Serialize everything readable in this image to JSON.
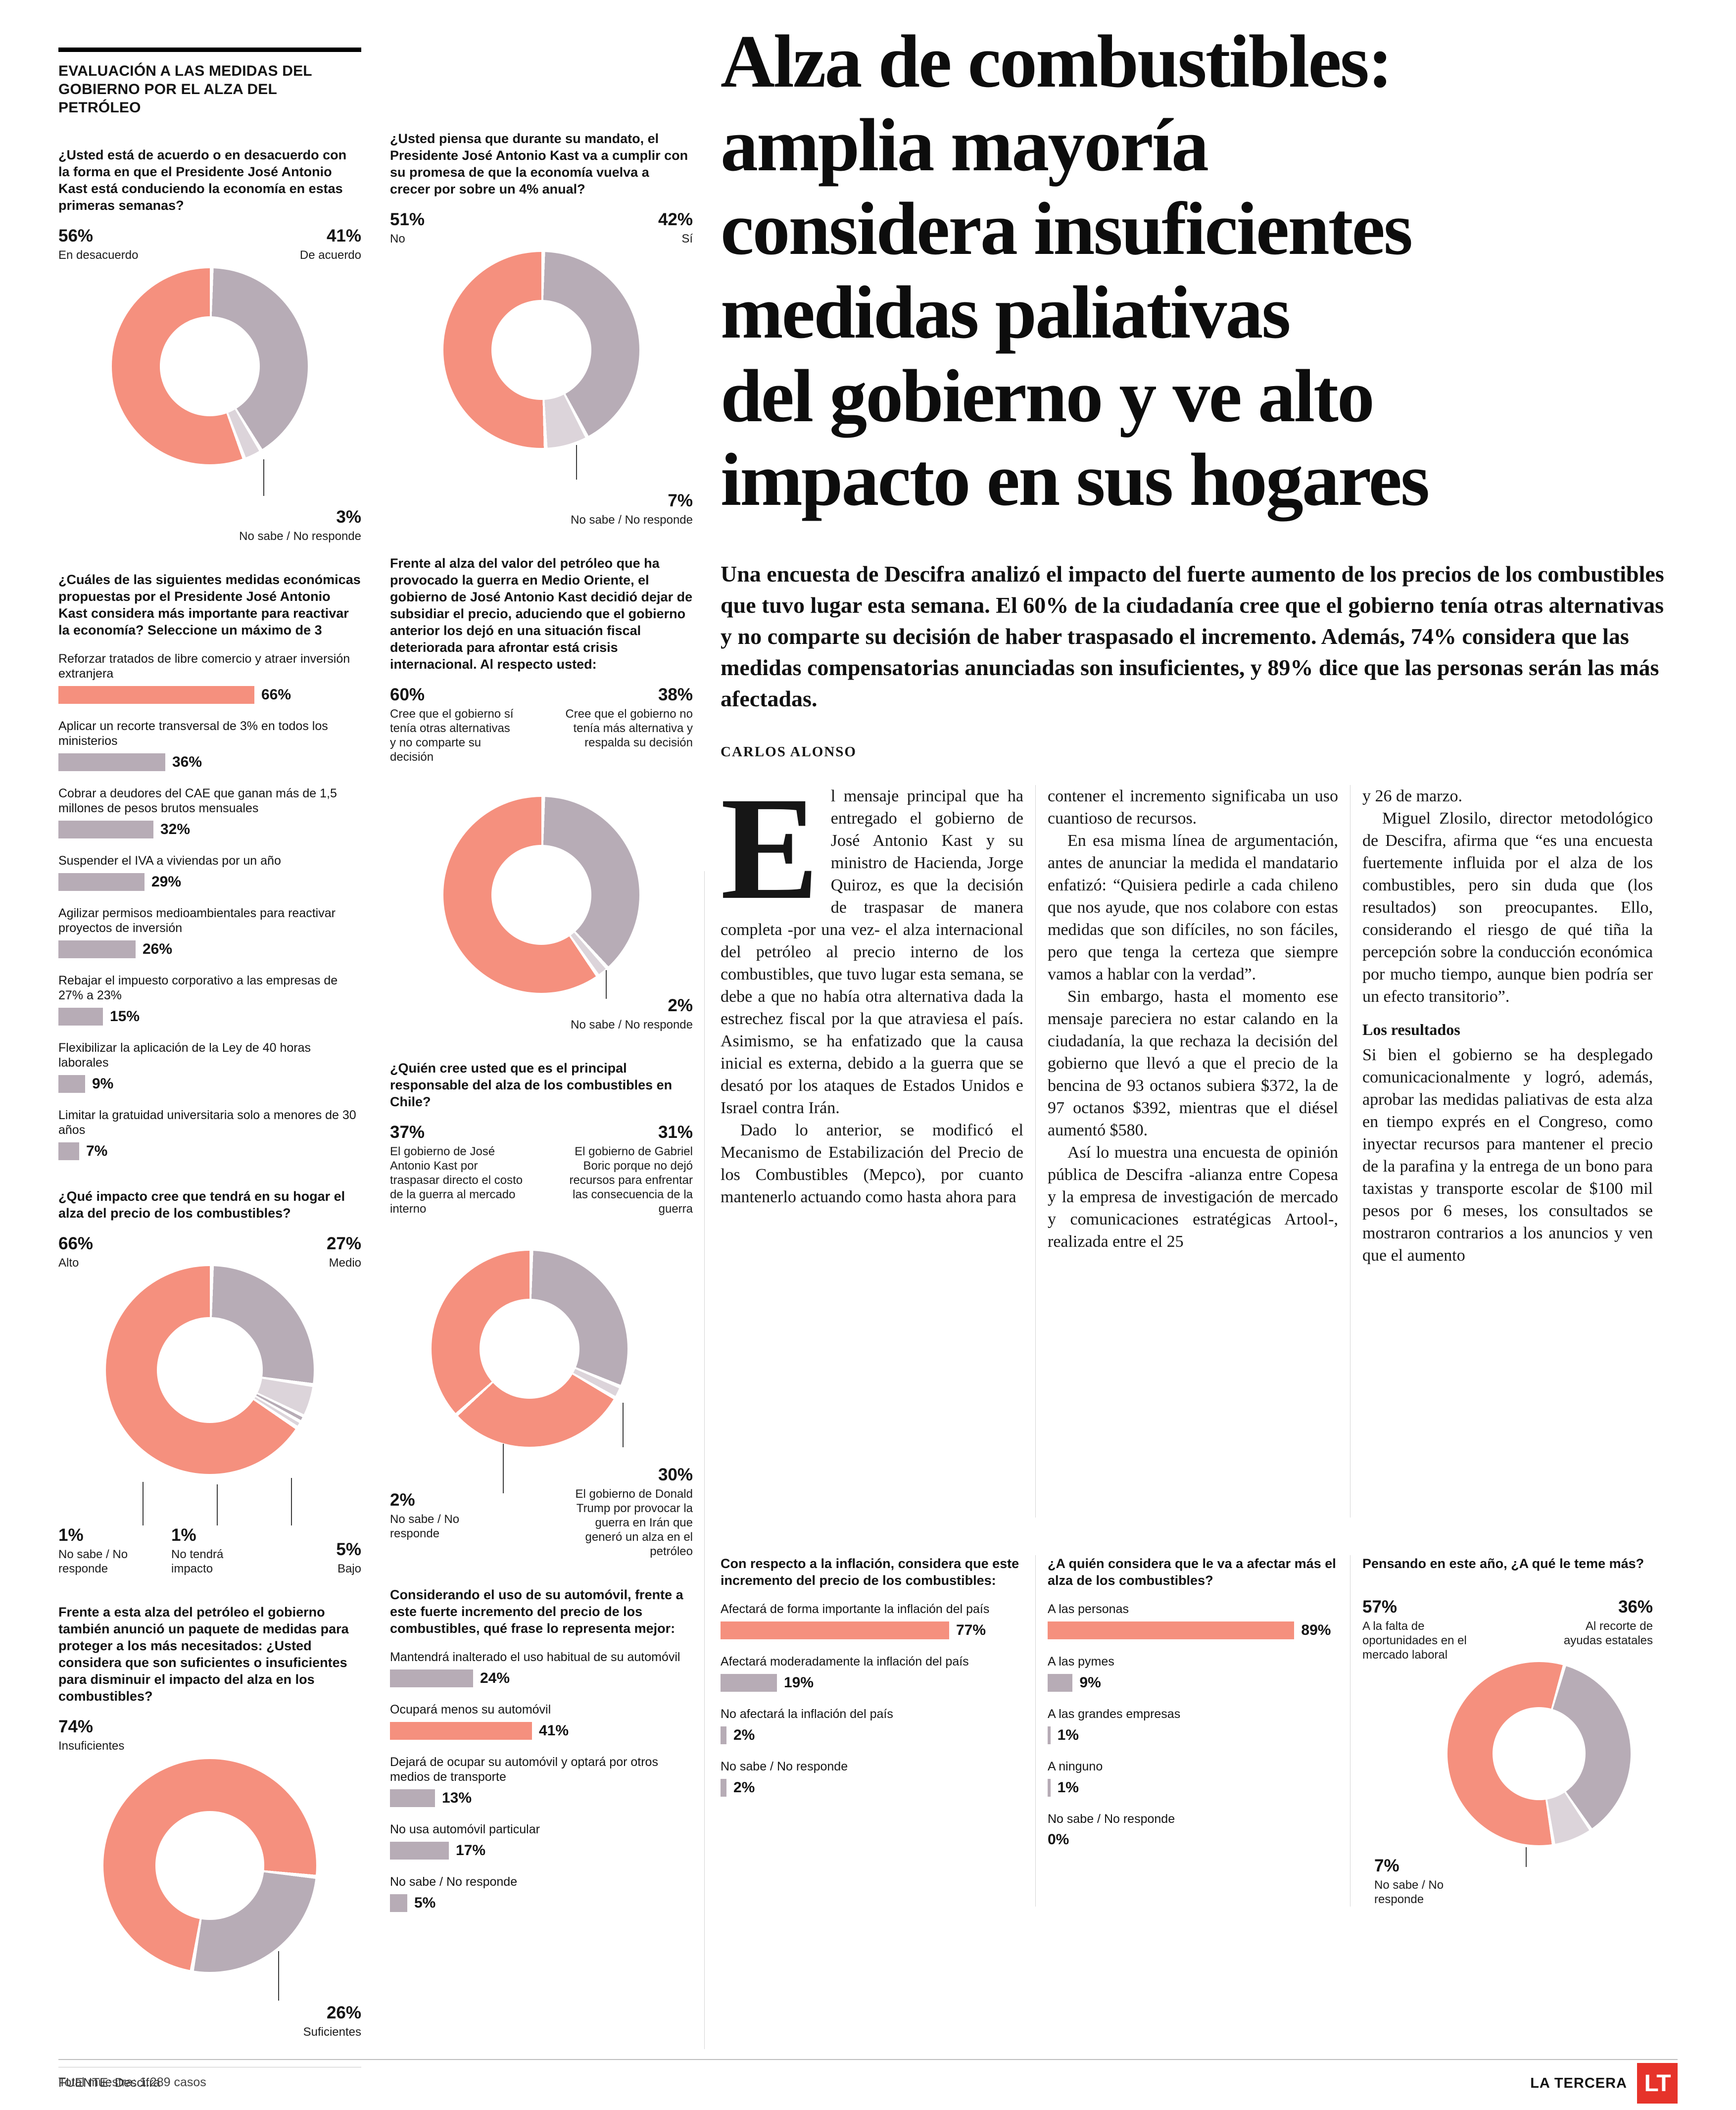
{
  "page": {
    "kicker": "EVALUACIÓN A LAS MEDIDAS DEL GOBIERNO POR EL ALZA DEL PETRÓLEO",
    "headline": "Alza de combustibles:\namplia mayoría\nconsidera insuficientes\nmedidas paliativas\ndel gobierno y ve alto\nimpacto en sus hogares",
    "lede": "Una encuesta de Descifra analizó el impacto del fuerte aumento de los precios de los combustibles que tuvo lugar esta semana. El 60% de la ciudadanía cree que el gobierno tenía otras alternativas y no comparte su decisión de haber traspasado el incremento. Además, 74% considera que las medidas compensatorias anunciadas son insuficientes, y 89% dice que las personas serán las más afectadas.",
    "byline": "CARLOS ALONSO",
    "total_sample": "Total muestra: 1.289 casos",
    "source": "FUENTE: Descifra",
    "brand": "LA TERCERA",
    "logo_text": "LT"
  },
  "colors": {
    "coral": "#F5907E",
    "gray": "#B7ACB6",
    "sliver": "#DCD4DA",
    "red": "#E6332A"
  },
  "article": {
    "dropcap": "E",
    "col1": {
      "p1": "l mensaje principal que ha entregado el gobierno de José Antonio Kast y su ministro de Hacienda, Jorge Quiroz, es que la decisión de traspasar de manera completa -por una vez- el alza internacional del petróleo al precio interno de los combustibles, que tuvo lugar esta semana, se debe a que no había otra alternativa dada la estrechez fiscal por la que atraviesa el país. Asimismo, se ha enfatizado que la causa inicial es externa, debido a la guerra que se desató por los ataques de Estados Unidos e Israel contra Irán.",
      "p2": "Dado lo anterior, se modificó el Mecanismo de Estabilización del Precio de los Combustibles (Mepco), por cuanto mantenerlo actuando como hasta ahora para"
    },
    "col2": {
      "p1": "contener el incremento significaba un uso cuantioso de recursos.",
      "p2": "En esa misma línea de argumentación, antes de anunciar la medida el mandatario enfatizó: “Quisiera pedirle a cada chileno que nos ayude, que nos colabore con estas medidas que son difíciles, no son fáciles, pero que tenga la certeza que siempre vamos a hablar con la verdad”.",
      "p3": "Sin embargo, hasta el momento ese mensaje pareciera no estar calando en la ciudadanía, la que rechaza la decisión del gobierno que llevó a que el precio de la bencina de 93 octanos subiera $372, la de 97 octanos $392, mientras que el diésel aumentó $580.",
      "p4": "Así lo muestra una encuesta de opinión pública de Descifra -alianza entre Copesa y la empresa de investigación de mercado y comunicaciones estratégicas Artool-, realizada entre el 25"
    },
    "col3": {
      "p1": "y 26 de marzo.",
      "p2": "Miguel Zlosilo, director metodológico de Descifra, afirma que “es una encuesta fuertemente influida por el alza de los combustibles, pero sin duda que (los resultados) son preocupantes. Ello, considerando el riesgo de qué tiña la percepción sobre la conducción económica por mucho tiempo, aunque bien podría ser un efecto transitorio”.",
      "subhead": "Los resultados",
      "p3": "Si bien el gobierno se ha desplegado comunicacionalmente y logró, además, aprobar las medidas paliativas de esta alza en tiempo exprés en el Congreso, como inyectar recursos para mantener el precio de la parafina y la entrega de un bono para taxistas y transporte escolar de $100 mil pesos por 6 meses, los consultados se mostraron contrarios a los anuncios y ven que el aumento"
    }
  },
  "chart_data": [
    {
      "id": "acuerdo-conduccion-economia",
      "type": "donut",
      "rotate": 0,
      "question": "¿Usted está de acuerdo o en desacuerdo con la forma en que el Presidente José Antonio Kast está conduciendo la economía en estas primeras semanas?",
      "segments": [
        {
          "label": "De acuerdo",
          "value": 41,
          "pct": "41%",
          "color": "gray"
        },
        {
          "label": "No sabe / No responde",
          "value": 3,
          "pct": "3%",
          "color": "sliver"
        },
        {
          "label": "En desacuerdo",
          "value": 56,
          "pct": "56%",
          "color": "coral"
        }
      ]
    },
    {
      "id": "cumplira-promesa-crecimiento",
      "type": "donut",
      "rotate": 0,
      "question": "¿Usted piensa que durante su mandato, el Presidente José Antonio Kast va a cumplir con su promesa de que la economía vuelva a crecer por sobre un 4% anual?",
      "segments": [
        {
          "label": "Sí",
          "value": 42,
          "pct": "42%",
          "color": "gray"
        },
        {
          "label": "No sabe / No responde",
          "value": 7,
          "pct": "7%",
          "color": "sliver"
        },
        {
          "label": "No",
          "value": 51,
          "pct": "51%",
          "color": "coral"
        }
      ]
    },
    {
      "id": "medidas-mas-importantes",
      "type": "bar",
      "question": "¿Cuáles de las siguientes medidas económicas propuestas por el Presidente José Antonio Kast considera más importante para reactivar la economía? Seleccione un máximo de 3",
      "items": [
        {
          "label": "Reforzar tratados de libre comercio y atraer inversión extranjera",
          "value": 66,
          "pct": "66%",
          "color": "coral"
        },
        {
          "label": "Aplicar un recorte transversal de 3% en todos los ministerios",
          "value": 36,
          "pct": "36%",
          "color": "gray"
        },
        {
          "label": "Cobrar a deudores del CAE que ganan más de 1,5 millones de pesos brutos mensuales",
          "value": 32,
          "pct": "32%",
          "color": "gray"
        },
        {
          "label": "Suspender el IVA a viviendas por un año",
          "value": 29,
          "pct": "29%",
          "color": "gray"
        },
        {
          "label": "Agilizar permisos medioambientales para reactivar proyectos de inversión",
          "value": 26,
          "pct": "26%",
          "color": "gray"
        },
        {
          "label": "Rebajar el impuesto corporativo a las empresas de 27% a 23%",
          "value": 15,
          "pct": "15%",
          "color": "gray"
        },
        {
          "label": "Flexibilizar la aplicación de la Ley de 40 horas laborales",
          "value": 9,
          "pct": "9%",
          "color": "gray"
        },
        {
          "label": "Limitar la gratuidad universitaria solo a menores de 30 años",
          "value": 7,
          "pct": "7%",
          "color": "gray"
        }
      ]
    },
    {
      "id": "decision-dejar-de-subsidiar",
      "type": "donut",
      "rotate": 0,
      "question": "Frente al alza del valor del petróleo que ha provocado la guerra en Medio Oriente, el gobierno de José Antonio Kast decidió dejar de subsidiar el precio, aduciendo que el gobierno anterior los dejó en una situación fiscal deteriorada para afrontar está crisis internacional. Al respecto usted:",
      "segments": [
        {
          "label": "Cree que el gobierno no tenía más alternativa y respalda su decisión",
          "value": 38,
          "pct": "38%",
          "color": "gray"
        },
        {
          "label": "No sabe / No responde",
          "value": 2,
          "pct": "2%",
          "color": "sliver"
        },
        {
          "label": "Cree que el gobierno sí tenía otras alternativas y no comparte su decisión",
          "value": 60,
          "pct": "60%",
          "color": "coral"
        }
      ]
    },
    {
      "id": "impacto-en-su-hogar",
      "type": "donut",
      "rotate": 0,
      "question": "¿Qué impacto cree que tendrá en su hogar el alza del precio de los combustibles?",
      "segments": [
        {
          "label": "Medio",
          "value": 27,
          "pct": "27%",
          "color": "gray"
        },
        {
          "label": "Bajo",
          "value": 5,
          "pct": "5%",
          "color": "sliver"
        },
        {
          "label": "No tendrá impacto",
          "value": 1,
          "pct": "1%",
          "color": "gray"
        },
        {
          "label": "No sabe / No responde",
          "value": 1,
          "pct": "1%",
          "color": "sliver"
        },
        {
          "label": "Alto",
          "value": 66,
          "pct": "66%",
          "color": "coral"
        }
      ]
    },
    {
      "id": "principal-responsable-alza",
      "type": "donut",
      "rotate": 0,
      "question": "¿Quién cree usted que es el principal responsable del alza de los combustibles en Chile?",
      "segments": [
        {
          "label": "El gobierno de Gabriel Boric porque no dejó recursos para enfrentar las consecuencia de la guerra",
          "value": 31,
          "pct": "31%",
          "color": "gray"
        },
        {
          "label": "No sabe / No responde",
          "value": 2,
          "pct": "2%",
          "color": "sliver"
        },
        {
          "label": "El gobierno de Donald Trump por provocar la guerra en Irán que generó un alza en el petróleo",
          "value": 30,
          "pct": "30%",
          "color": "coral"
        },
        {
          "label": "El gobierno de José Antonio Kast por traspasar directo el costo de la guerra al mercado interno",
          "value": 37,
          "pct": "37%",
          "color": "coral"
        }
      ]
    },
    {
      "id": "medidas-suficientes-o-insuficientes",
      "type": "donut",
      "rotate": 95,
      "question": "Frente a esta alza del petróleo el gobierno también anunció un paquete de medidas para proteger a los más necesitados: ¿Usted considera que son suficientes o insuficientes para disminuir el impacto del alza en los combustibles?",
      "segments": [
        {
          "label": "Suficientes",
          "value": 26,
          "pct": "26%",
          "color": "gray"
        },
        {
          "label": "Insuficientes",
          "value": 74,
          "pct": "74%",
          "color": "coral"
        }
      ]
    },
    {
      "id": "uso-automovil",
      "type": "bar",
      "question": "Considerando el uso de su automóvil, frente a este fuerte incremento del precio de los combustibles, qué frase lo representa mejor:",
      "items": [
        {
          "label": "Mantendrá inalterado el uso habitual de su automóvil",
          "value": 24,
          "pct": "24%",
          "color": "gray"
        },
        {
          "label": "Ocupará menos su automóvil",
          "value": 41,
          "pct": "41%",
          "color": "coral"
        },
        {
          "label": "Dejará de ocupar su automóvil y optará por otros medios de transporte",
          "value": 13,
          "pct": "13%",
          "color": "gray"
        },
        {
          "label": "No usa automóvil particular",
          "value": 17,
          "pct": "17%",
          "color": "gray"
        },
        {
          "label": "No sabe / No responde",
          "value": 5,
          "pct": "5%",
          "color": "gray"
        }
      ]
    },
    {
      "id": "efecto-en-inflacion",
      "type": "bar",
      "question": "Con respecto a la inflación, considera que este incremento del precio de los combustibles:",
      "items": [
        {
          "label": "Afectará de forma importante la inflación del país",
          "value": 77,
          "pct": "77%",
          "color": "coral"
        },
        {
          "label": "Afectará moderadamente la inflación del país",
          "value": 19,
          "pct": "19%",
          "color": "gray"
        },
        {
          "label": "No afectará la inflación del país",
          "value": 2,
          "pct": "2%",
          "color": "gray"
        },
        {
          "label": "No sabe / No responde",
          "value": 2,
          "pct": "2%",
          "color": "gray"
        }
      ]
    },
    {
      "id": "a-quien-afecta-mas",
      "type": "bar",
      "question": "¿A quién considera que le va a afectar más el alza de los combustibles?",
      "items": [
        {
          "label": "A las personas",
          "value": 89,
          "pct": "89%",
          "color": "coral"
        },
        {
          "label": "A las pymes",
          "value": 9,
          "pct": "9%",
          "color": "gray"
        },
        {
          "label": "A las grandes empresas",
          "value": 1,
          "pct": "1%",
          "color": "gray"
        },
        {
          "label": "A ninguno",
          "value": 1,
          "pct": "1%",
          "color": "gray"
        },
        {
          "label": "No sabe / No responde",
          "value": 0,
          "pct": "0%",
          "color": "gray"
        }
      ]
    },
    {
      "id": "a-que-teme-mas",
      "type": "donut",
      "rotate": 15,
      "question": "Pensando en este año, ¿A qué le teme más?",
      "segments": [
        {
          "label": "Al recorte de ayudas estatales",
          "value": 36,
          "pct": "36%",
          "color": "gray"
        },
        {
          "label": "No sabe / No responde",
          "value": 7,
          "pct": "7%",
          "color": "sliver"
        },
        {
          "label": "A la falta de oportunidades en el mercado laboral",
          "value": 57,
          "pct": "57%",
          "color": "coral"
        }
      ]
    }
  ]
}
